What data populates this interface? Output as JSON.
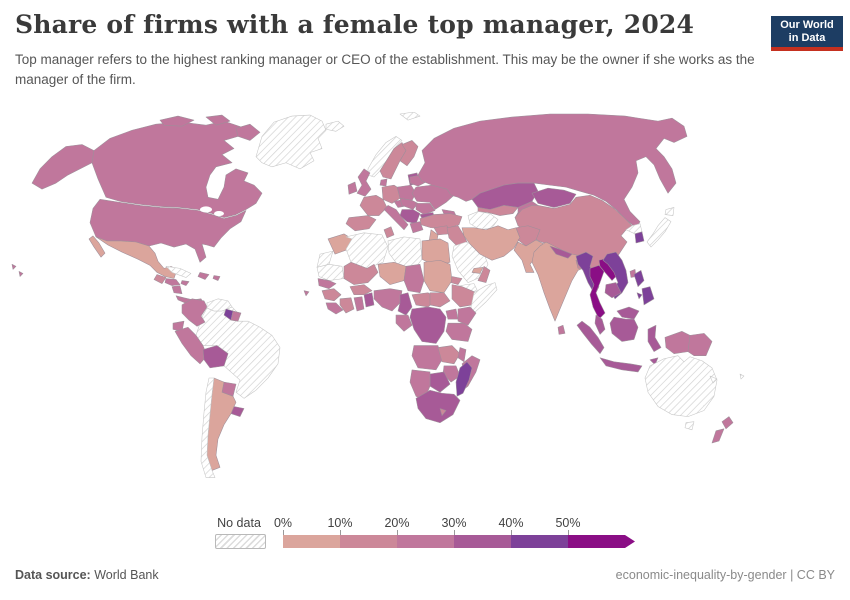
{
  "header": {
    "title": "Share of firms with a female top manager, 2024",
    "subtitle": "Top manager refers to the highest ranking manager or CEO of the establishment. This may be the owner if she works as the manager of the firm.",
    "logo": {
      "line1": "Our World",
      "line2": "in Data",
      "bg": "#1d3d63",
      "accent": "#c5301f"
    }
  },
  "legend": {
    "no_data_label": "No data",
    "ticks": [
      "0%",
      "10%",
      "20%",
      "30%",
      "40%",
      "50%"
    ],
    "bucket_colors": [
      "#dba59c",
      "#cc8899",
      "#c0779c",
      "#a75a97",
      "#7d4199",
      "#8a0e85"
    ],
    "hatch_line": "#d4d4d4"
  },
  "footer": {
    "source_label": "Data source:",
    "source_value": "World Bank",
    "right_text": "economic-inequality-by-gender | CC BY"
  },
  "chart_data": {
    "type": "choropleth-map",
    "title": "Share of firms with a female top manager, 2024",
    "unit": "%",
    "legend_buckets": [
      "0-10%",
      "10-20%",
      "20-30%",
      "30-40%",
      "40-50%",
      "50%+"
    ],
    "no_data_regions": [
      "greenland",
      "cuba",
      "venezuela",
      "brazil",
      "chile",
      "iceland",
      "svalbard",
      "norway",
      "turkmenistan",
      "nkorea",
      "japan",
      "saudi",
      "yemen",
      "wsahara",
      "mauritania",
      "algeria",
      "libya",
      "somalia",
      "australia",
      "tasmania",
      "newcaledonia",
      "fiji"
    ],
    "regions": {
      "greenland": "nodata",
      "alaska": 2,
      "canada": 2,
      "canada-arctic": 2,
      "usa": 2,
      "hawaii": 2,
      "mexico": 0,
      "guatemala": 1,
      "honduras": 2,
      "nicaragua": 2,
      "costarica-panama": 2,
      "cuba": "nodata",
      "hispaniola": 2,
      "jamaica": 2,
      "puertorico": 2,
      "colombia": 2,
      "venezuela": "nodata",
      "guyana": 4,
      "suriname": 2,
      "ecuador": 2,
      "peru": 2,
      "bolivia": 3,
      "brazil": "nodata",
      "paraguay": 2,
      "uruguay": 3,
      "argentina": 0,
      "chile": "nodata",
      "capeverde": 2,
      "iceland": "nodata",
      "svalbard": "nodata",
      "norway": "nodata",
      "sweden": 1,
      "finland": 1,
      "denmark": 2,
      "uk": 2,
      "ireland": 2,
      "baltics": 3,
      "poland": 2,
      "germany": 1,
      "france": 1,
      "iberia": 1,
      "italy": 2,
      "austria": 2,
      "czech-hungary": 2,
      "balkans": 3,
      "greece": 2,
      "romania": 2,
      "bulgaria": 3,
      "ukraine": 2,
      "belarus": 2,
      "turkey": 1,
      "russia": 2,
      "kazakhstan": 3,
      "uzbekistan": 1,
      "turkmenistan": "nodata",
      "kyrgyzstan": 2,
      "tajikistan": 2,
      "caucasus": 2,
      "mongolia": 3,
      "china": 1,
      "nkorea": "nodata",
      "skorea": 4,
      "japan": "nodata",
      "taiwan": 2,
      "syria": 1,
      "levant": 0,
      "iraq": 1,
      "saudi": "nodata",
      "yemen": "nodata",
      "oman": 1,
      "uae": 0,
      "iran": 0,
      "afghanistan": 1,
      "pakistan": 0,
      "india": 0,
      "nepal": 3,
      "bangladesh": 1,
      "srilanka": 2,
      "myanmar": 4,
      "thailand": 5,
      "laos": 5,
      "vietnam": 4,
      "cambodia": 3,
      "malaysia": 3,
      "malaysia-borneo": 3,
      "sumatra": 3,
      "java": 3,
      "kalimantan": 3,
      "sulawesi": 3,
      "philippines": 4,
      "papua": 2,
      "png": 2,
      "timor": 3,
      "morocco": 0,
      "wsahara": "nodata",
      "mauritania": "nodata",
      "algeria": "nodata",
      "tunisia": 1,
      "libya": "nodata",
      "egypt": 0,
      "mali": 1,
      "niger": 0,
      "chad": 2,
      "sudan": 0,
      "eritrea": 1,
      "ethiopia": 1,
      "somalia": "nodata",
      "senegal": 2,
      "guinea": 1,
      "sierraleone": 2,
      "ivorycoast": 1,
      "ghana": 2,
      "togo-benin": 3,
      "burkina": 1,
      "nigeria": 2,
      "cameroon": 3,
      "car": 1,
      "ssudan": 1,
      "gabon-congo": 2,
      "drc": 3,
      "uganda": 2,
      "kenya": 2,
      "tanzania": 2,
      "angola": 2,
      "zambia": 1,
      "malawi": 2,
      "mozambique": 2,
      "zimbabwe": 2,
      "botswana": 3,
      "namibia": 2,
      "safrica": 3,
      "lesotho": 1,
      "madagascar": 4,
      "australia": "nodata",
      "tasmania": "nodata",
      "nz": 2,
      "newcaledonia": "nodata",
      "fiji": "nodata"
    }
  }
}
